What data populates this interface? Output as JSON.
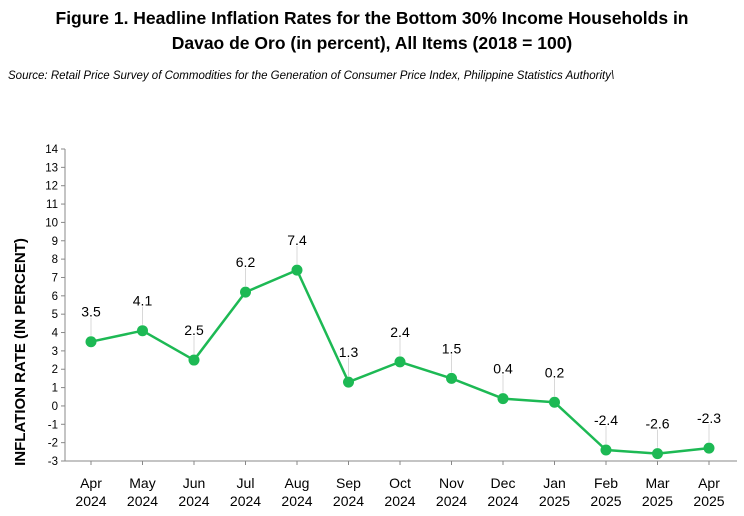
{
  "title_line1": "Figure 1. Headline Inflation Rates for the Bottom 30% Income Households in",
  "title_line2": "Davao de Oro (in percent), All Items (2018 = 100)",
  "source": "Source: Retail Price Survey of Commodities for the Generation of Consumer Price Index, Philippine Statistics Authority\\",
  "chart_data": {
    "type": "line",
    "title": "Figure 1. Headline Inflation Rates for the Bottom 30% Income Households in Davao de Oro (in percent), All Items (2018 = 100)",
    "xlabel": "",
    "ylabel": "INFLATION RATE (IN PERCENT)",
    "ylim": [
      -3,
      14
    ],
    "yticks": [
      14,
      13,
      12,
      11,
      10,
      9,
      8,
      7,
      6,
      5,
      4,
      3,
      2,
      1,
      0,
      -1,
      -2,
      -3
    ],
    "categories": [
      [
        "Apr",
        "2024"
      ],
      [
        "May",
        "2024"
      ],
      [
        "Jun",
        "2024"
      ],
      [
        "Jul",
        "2024"
      ],
      [
        "Aug",
        "2024"
      ],
      [
        "Sep",
        "2024"
      ],
      [
        "Oct",
        "2024"
      ],
      [
        "Nov",
        "2024"
      ],
      [
        "Dec",
        "2024"
      ],
      [
        "Jan",
        "2025"
      ],
      [
        "Feb",
        "2025"
      ],
      [
        "Mar",
        "2025"
      ],
      [
        "Apr",
        "2025"
      ]
    ],
    "values": [
      3.5,
      4.1,
      2.5,
      6.2,
      7.4,
      1.3,
      2.4,
      1.5,
      0.4,
      0.2,
      -2.4,
      -2.6,
      -2.3
    ],
    "data_labels": [
      "3.5",
      "4.1",
      "2.5",
      "6.2",
      "7.4",
      "1.3",
      "2.4",
      "1.5",
      "0.4",
      "0.2",
      "-2.4",
      "-2.6",
      "-2.3"
    ],
    "line_color": "#1db954",
    "grid": false,
    "legend": "none"
  }
}
